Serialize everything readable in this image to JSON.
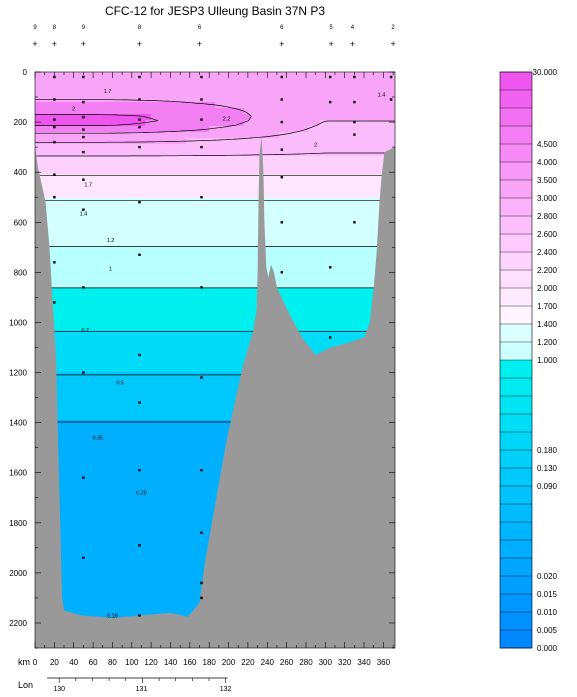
{
  "chart_data": {
    "type": "heatmap",
    "title": "CFC-12 for JESP3 Ulleung Basin 37N P3",
    "x_axis": {
      "label": "km",
      "ticks": [
        0,
        20,
        40,
        60,
        80,
        100,
        120,
        140,
        160,
        180,
        200,
        220,
        240,
        260,
        280,
        300,
        320,
        340,
        360
      ],
      "range": [
        0,
        372
      ]
    },
    "y_axis": {
      "ticks": [
        0,
        200,
        400,
        600,
        800,
        1000,
        1200,
        1400,
        1600,
        1800,
        2000,
        2200
      ],
      "range": [
        0,
        2300
      ],
      "inverted": true
    },
    "lon_axis": {
      "label": "Lon",
      "ticks": [
        130,
        131,
        132
      ],
      "km_at_ticks": [
        25,
        110,
        197
      ]
    },
    "station_numbers": [
      {
        "km": 0,
        "label": "9"
      },
      {
        "km": 20,
        "label": "8"
      },
      {
        "km": 50,
        "label": "9"
      },
      {
        "km": 108,
        "label": "8"
      },
      {
        "km": 170,
        "label": "6"
      },
      {
        "km": 255,
        "label": "6"
      },
      {
        "km": 306,
        "label": "5"
      },
      {
        "km": 328,
        "label": "4"
      },
      {
        "km": 370,
        "label": "2"
      }
    ],
    "contour_labels": [
      {
        "text": "1.7",
        "km": 75,
        "depth": 75
      },
      {
        "text": "1.4",
        "km": 358,
        "depth": 90
      },
      {
        "text": "2",
        "km": 40,
        "depth": 145
      },
      {
        "text": "2.2",
        "km": 198,
        "depth": 185
      },
      {
        "text": "2",
        "km": 290,
        "depth": 290
      },
      {
        "text": "1.7",
        "km": 55,
        "depth": 450
      },
      {
        "text": "1.4",
        "km": 50,
        "depth": 565
      },
      {
        "text": "1.2",
        "km": 78,
        "depth": 670
      },
      {
        "text": "1",
        "km": 78,
        "depth": 785
      },
      {
        "text": "0.7",
        "km": 52,
        "depth": 1030
      },
      {
        "text": "0.5",
        "km": 88,
        "depth": 1240
      },
      {
        "text": "0.35",
        "km": 65,
        "depth": 1460
      },
      {
        "text": "0.25",
        "km": 110,
        "depth": 1680
      },
      {
        "text": "0.18",
        "km": 80,
        "depth": 2170
      }
    ],
    "colorbar": {
      "labels": [
        "30.000",
        "4.500",
        "4.000",
        "3.500",
        "3.000",
        "2.800",
        "2.600",
        "2.400",
        "2.200",
        "2.000",
        "1.700",
        "1.400",
        "1.200",
        "1.000",
        "0.180",
        "0.130",
        "0.090",
        "0.020",
        "0.015",
        "0.010",
        "0.005",
        "0.000"
      ],
      "label_rows": [
        0,
        4,
        5,
        6,
        7,
        8,
        9,
        10,
        11,
        12,
        13,
        14,
        15,
        16,
        21,
        22,
        23,
        28,
        29,
        30,
        31,
        32
      ],
      "row_count": 32,
      "colors": [
        "#ee55ee",
        "#f062f0",
        "#f270f2",
        "#f47ef4",
        "#f68bf6",
        "#f799f7",
        "#f9a6f9",
        "#fab3fa",
        "#fbbffb",
        "#fccafc",
        "#fdd4fd",
        "#fde0fd",
        "#feeafe",
        "#fff4ff",
        "#d9ffff",
        "#ccffff",
        "#00f0f0",
        "#00eaf2",
        "#00e4f4",
        "#00def6",
        "#00d7f8",
        "#00d0fa",
        "#00c9fb",
        "#00c2fc",
        "#00bbfd",
        "#00b4fe",
        "#00adfe",
        "#00a6ff",
        "#009fff",
        "#0098ff",
        "#0090ff",
        "#0088ff"
      ]
    },
    "bands": [
      {
        "min": 2.2,
        "color": "#ee55ee"
      },
      {
        "min": 2.0,
        "color": "#f280f2"
      },
      {
        "min": 1.7,
        "color": "#f8a5f8"
      },
      {
        "min": 1.4,
        "color": "#fbbcfb"
      },
      {
        "min": 1.2,
        "color": "#fdd0fd"
      },
      {
        "min": 1.0,
        "color": "#fee6fe"
      },
      {
        "min": 0.7,
        "color": "#d4ffff"
      },
      {
        "min": 0.5,
        "color": "#b8ffff"
      },
      {
        "min": 0.35,
        "color": "#00f0f0"
      },
      {
        "min": 0.25,
        "color": "#00dcf8"
      },
      {
        "min": 0.18,
        "color": "#00c8fc"
      },
      {
        "min": 0.0,
        "color": "#00b0fe"
      }
    ],
    "land_color": "#999999"
  }
}
